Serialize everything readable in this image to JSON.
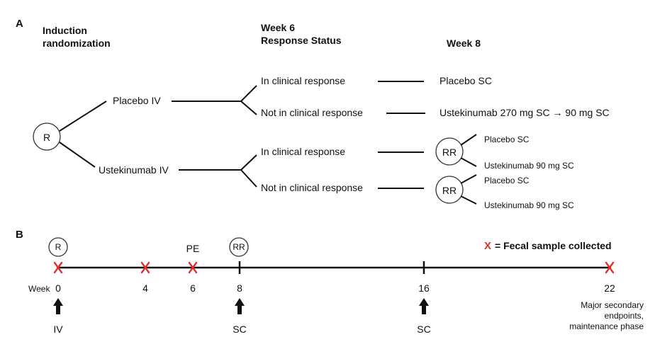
{
  "panel_a": {
    "label": "A",
    "col1_header": [
      "Induction",
      "randomization"
    ],
    "col2_header": [
      "Week 6",
      "Response Status"
    ],
    "col3_header": "Week 8",
    "randomize": "R",
    "arm_placebo": "Placebo IV",
    "arm_ustek": "Ustekinumab IV",
    "response_in": "In clinical response",
    "response_not": "Not in clinical response",
    "outcome_placebo_sc": "Placebo SC",
    "outcome_ustek_induction": "Ustekinumab 270 mg SC → 90 mg SC",
    "rerandomize": "RR",
    "sub_placebo": "Placebo SC",
    "sub_ustek": "Ustekinumab 90 mg SC"
  },
  "panel_b": {
    "label": "B",
    "legend_mark": "X",
    "legend_text": "= Fecal sample collected",
    "week_label": "Week",
    "ticks": [
      "0",
      "4",
      "6",
      "8",
      "16",
      "22"
    ],
    "circle_r": "R",
    "circle_rr": "RR",
    "pe": "PE",
    "arrow_labels": [
      "IV",
      "SC",
      "SC"
    ],
    "endpoint_text": [
      "Major secondary",
      "endpoints,",
      "maintenance phase"
    ]
  },
  "colors": {
    "sample_mark": "#e0312b",
    "ink": "#111111"
  }
}
